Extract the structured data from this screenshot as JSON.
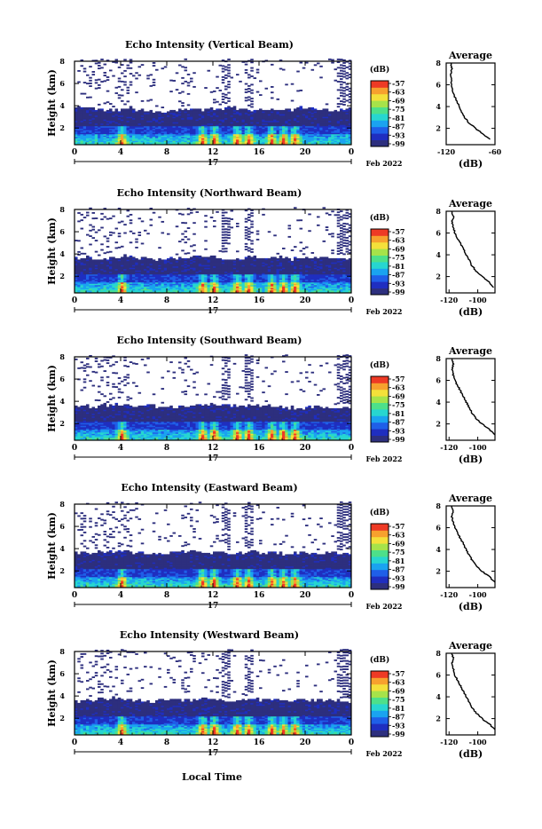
{
  "figure": {
    "xlabel_bottom": "Local Time",
    "date_label": "Feb 2022",
    "day_label": "17",
    "x_ticks": [
      "0",
      "4",
      "8",
      "12",
      "16",
      "20",
      "0"
    ],
    "y_ticks": [
      "2",
      "4",
      "6",
      "8"
    ],
    "ylabel": "Height (km)",
    "colorbar": {
      "unit": "(dB)",
      "ticks": [
        "-57",
        "-63",
        "-69",
        "-75",
        "-81",
        "-87",
        "-93",
        "-99"
      ],
      "colors": [
        "#2d2f7e",
        "#1f2ec0",
        "#1f5fe8",
        "#1aa3f0",
        "#27d6d0",
        "#4de08a",
        "#a6e34a",
        "#f4e03a",
        "#f7a12e",
        "#ee3a25"
      ]
    },
    "avg_panel": {
      "title": "Average",
      "xlabel": "(dB)",
      "y_ticks": [
        "2",
        "4",
        "6",
        "8"
      ]
    }
  },
  "chart_data": [
    {
      "type": "heatmap",
      "title": "Echo Intensity (Vertical Beam)",
      "xlabel": "Local Time",
      "ylabel": "Height (km)",
      "x_range_hours": [
        0,
        24
      ],
      "ylim_km": [
        0.5,
        8
      ],
      "colorbar_db": [
        -99,
        -57
      ],
      "layer_top_km": [
        3.8,
        3.7,
        3.6,
        3.6,
        3.8,
        3.6,
        3.5,
        3.4,
        3.5,
        3.6,
        3.7,
        3.6,
        3.7,
        3.8,
        3.6,
        3.5,
        3.6,
        3.7,
        3.6,
        3.8,
        3.7,
        3.6,
        3.5,
        3.7
      ],
      "enhanced_echo_hours": [
        4,
        11,
        12,
        14,
        15,
        17,
        18,
        19
      ],
      "average_profile": {
        "xticks": [
          "-120",
          "-60"
        ],
        "xlim": [
          -120,
          -60
        ],
        "height_km": [
          1,
          1.5,
          2,
          2.5,
          3,
          3.5,
          4,
          4.5,
          5,
          5.5,
          6,
          6.5,
          7,
          7.5,
          8
        ],
        "db": [
          -66,
          -75,
          -84,
          -92,
          -97,
          -101,
          -104,
          -107,
          -110,
          -112,
          -113,
          -114,
          -114,
          -113,
          -114
        ]
      }
    },
    {
      "type": "heatmap",
      "title": "Echo Intensity (Northward Beam)",
      "xlabel": "Local Time",
      "ylabel": "Height (km)",
      "x_range_hours": [
        0,
        24
      ],
      "ylim_km": [
        0.5,
        8
      ],
      "colorbar_db": [
        -99,
        -57
      ],
      "layer_top_km": [
        3.6,
        3.6,
        3.5,
        3.7,
        3.8,
        3.6,
        3.6,
        3.5,
        3.6,
        3.7,
        3.8,
        3.7,
        3.6,
        3.5,
        3.6,
        3.7,
        3.6,
        3.7,
        3.5,
        3.6,
        3.6,
        3.7,
        3.6,
        3.5
      ],
      "enhanced_echo_hours": [
        4,
        11,
        12,
        14,
        15,
        17,
        18,
        19
      ],
      "average_profile": {
        "xticks": [
          "-120",
          "-100"
        ],
        "xlim": [
          -122,
          -88
        ],
        "height_km": [
          1,
          1.5,
          2,
          2.5,
          3,
          3.5,
          4,
          4.5,
          5,
          5.5,
          6,
          6.5,
          7,
          7.5,
          8
        ],
        "db": [
          -89,
          -92,
          -97,
          -101,
          -104,
          -106,
          -108,
          -110,
          -112,
          -114,
          -116,
          -117,
          -118,
          -117,
          -118
        ]
      }
    },
    {
      "type": "heatmap",
      "title": "Echo Intensity (Southward Beam)",
      "xlabel": "Local Time",
      "ylabel": "Height (km)",
      "x_range_hours": [
        0,
        24
      ],
      "ylim_km": [
        0.5,
        8
      ],
      "colorbar_db": [
        -99,
        -57
      ],
      "layer_top_km": [
        3.4,
        3.5,
        3.6,
        3.7,
        3.6,
        3.5,
        3.6,
        3.5,
        3.4,
        3.5,
        3.6,
        3.7,
        3.6,
        3.6,
        3.5,
        3.6,
        3.6,
        3.5,
        3.4,
        3.3,
        3.4,
        3.5,
        3.4,
        3.3
      ],
      "enhanced_echo_hours": [
        4,
        11,
        12,
        14,
        15,
        17,
        18,
        19
      ],
      "average_profile": {
        "xticks": [
          "-120",
          "-100"
        ],
        "xlim": [
          -122,
          -88
        ],
        "height_km": [
          1,
          1.5,
          2,
          2.5,
          3,
          3.5,
          4,
          4.5,
          5,
          5.5,
          6,
          6.5,
          7,
          7.5,
          8
        ],
        "db": [
          -88,
          -92,
          -97,
          -101,
          -104,
          -106,
          -108,
          -110,
          -112,
          -114,
          -116,
          -117,
          -118,
          -117,
          -118
        ]
      }
    },
    {
      "type": "heatmap",
      "title": "Echo Intensity (Eastward Beam)",
      "xlabel": "Local Time",
      "ylabel": "Height (km)",
      "x_range_hours": [
        0,
        24
      ],
      "ylim_km": [
        0.5,
        8
      ],
      "colorbar_db": [
        -99,
        -57
      ],
      "layer_top_km": [
        3.6,
        3.6,
        3.7,
        3.7,
        3.8,
        3.6,
        3.5,
        3.5,
        3.6,
        3.7,
        3.8,
        3.6,
        3.6,
        3.5,
        3.6,
        3.7,
        3.6,
        3.6,
        3.5,
        3.6,
        3.5,
        3.6,
        3.6,
        3.5
      ],
      "enhanced_echo_hours": [
        4,
        11,
        12,
        14,
        15,
        17,
        18,
        19
      ],
      "average_profile": {
        "xticks": [
          "-120",
          "-100"
        ],
        "xlim": [
          -122,
          -88
        ],
        "height_km": [
          1,
          1.5,
          2,
          2.5,
          3,
          3.5,
          4,
          4.5,
          5,
          5.5,
          6,
          6.5,
          7,
          7.5,
          8
        ],
        "db": [
          -88,
          -92,
          -97,
          -101,
          -104,
          -106,
          -108,
          -110,
          -112,
          -114,
          -116,
          -117,
          -118,
          -117,
          -118
        ]
      }
    },
    {
      "type": "heatmap",
      "title": "Echo Intensity (Westward Beam)",
      "xlabel": "Local Time",
      "ylabel": "Height (km)",
      "x_range_hours": [
        0,
        24
      ],
      "ylim_km": [
        0.5,
        8
      ],
      "colorbar_db": [
        -99,
        -57
      ],
      "layer_top_km": [
        3.5,
        3.6,
        3.7,
        3.8,
        3.6,
        3.5,
        3.5,
        3.6,
        3.7,
        3.6,
        3.6,
        3.7,
        3.6,
        3.5,
        3.6,
        3.7,
        3.6,
        3.6,
        3.5,
        3.6,
        3.5,
        3.6,
        3.6,
        3.5
      ],
      "enhanced_echo_hours": [
        4,
        11,
        12,
        14,
        15,
        17,
        18,
        19
      ],
      "average_profile": {
        "xticks": [
          "-120",
          "-100"
        ],
        "xlim": [
          -122,
          -88
        ],
        "height_km": [
          1,
          1.5,
          2,
          2.5,
          3,
          3.5,
          4,
          4.5,
          5,
          5.5,
          6,
          6.5,
          7,
          7.5,
          8
        ],
        "db": [
          -88,
          -92,
          -97,
          -101,
          -104,
          -106,
          -108,
          -110,
          -112,
          -114,
          -116,
          -117,
          -118,
          -117,
          -118
        ]
      }
    }
  ]
}
